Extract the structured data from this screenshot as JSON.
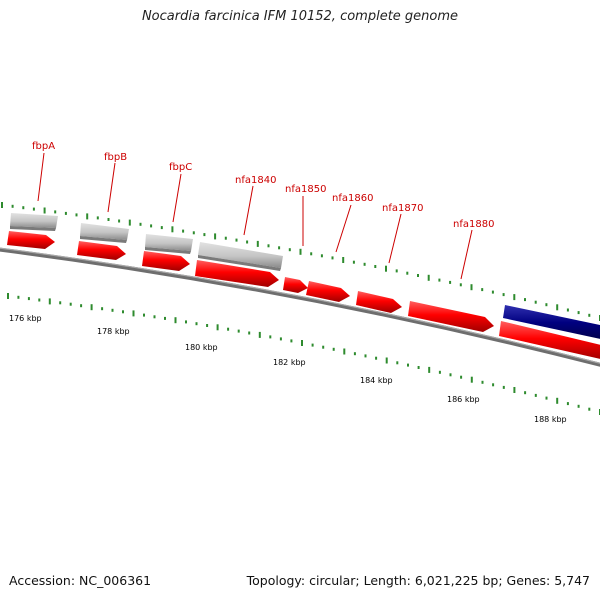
{
  "title": "Nocardia farcinica IFM 10152, complete genome",
  "footer": {
    "accession": "Accession: NC_006361",
    "summary": "Topology: circular; Length: 6,021,225 bp; Genes: 5,747"
  },
  "colors": {
    "backbone": "#7a7a7a",
    "gene_red": "#ff0000",
    "gene_grey": "#c8c8c8",
    "gene_navy": "#000080",
    "tick_green": "#2e8b2e",
    "label_red": "#cc0000"
  },
  "genes": [
    {
      "label": "fbpA",
      "color": "red",
      "strand": "forward"
    },
    {
      "label": "fbpB",
      "color": "red",
      "strand": "forward"
    },
    {
      "label": "fbpC",
      "color": "red",
      "strand": "forward"
    },
    {
      "label": "nfa1840",
      "color": "red",
      "strand": "forward"
    },
    {
      "label": "nfa1850",
      "color": "red",
      "strand": "forward"
    },
    {
      "label": "nfa1860",
      "color": "red",
      "strand": "forward"
    },
    {
      "label": "nfa1870",
      "color": "red",
      "strand": "forward"
    },
    {
      "label": "nfa1880",
      "color": "red",
      "strand": "forward"
    },
    {
      "label": "",
      "color": "red",
      "strand": "forward"
    }
  ],
  "scale_labels": [
    "176 kbp",
    "178 kbp",
    "180 kbp",
    "182 kbp",
    "184 kbp",
    "186 kbp",
    "188 kbp"
  ]
}
